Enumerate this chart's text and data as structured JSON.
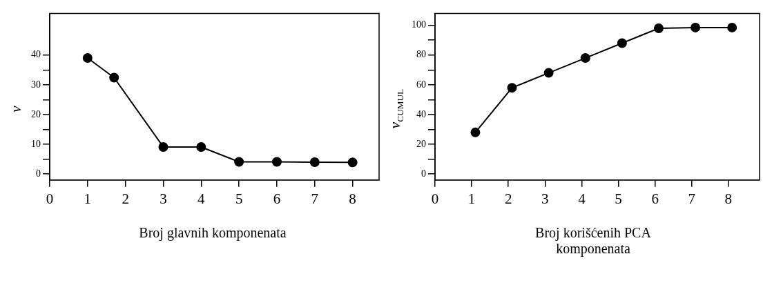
{
  "chart_data": [
    {
      "type": "line",
      "xlabel": "Broj glavnih komponenata",
      "ylabel": "v",
      "x": [
        1,
        1.7,
        3,
        4,
        5,
        6,
        7,
        8
      ],
      "series": [
        {
          "color": "#000000",
          "values": [
            39,
            32.4,
            9.1,
            9.1,
            4.1,
            4.1,
            4,
            3.9
          ]
        }
      ],
      "xlim": [
        0,
        8.7
      ],
      "xticks": [
        0,
        1,
        2,
        3,
        4,
        5,
        6,
        7,
        8
      ],
      "ylim": [
        -2,
        54
      ],
      "yticks": [
        0,
        {
          "value": 5,
          "label": null
        },
        10,
        {
          "value": 15,
          "label": null
        },
        20,
        {
          "value": 25,
          "label": null
        },
        30,
        {
          "value": 35,
          "label": null
        },
        40
      ],
      "marker": "circle",
      "grid": false
    },
    {
      "type": "line",
      "xlabel": "Broj korišćenih PCA komponenata",
      "ylabel": "v$_{CUMUL}$",
      "x": [
        1.1,
        2.1,
        3.1,
        4.1,
        5.1,
        6.1,
        7.1,
        8.1
      ],
      "series": [
        {
          "color": "#000000",
          "values": [
            28,
            58,
            68,
            78,
            88,
            98,
            98.5,
            98.5
          ]
        }
      ],
      "xlim": [
        0,
        8.85
      ],
      "xticks": [
        0,
        1,
        2,
        3,
        4,
        5,
        6,
        7,
        8
      ],
      "ylim": [
        -4,
        108
      ],
      "yticks": [
        0,
        {
          "value": 10,
          "label": null
        },
        20,
        {
          "value": 30,
          "label": null
        },
        40,
        {
          "value": 50,
          "label": null
        },
        60,
        {
          "value": 70,
          "label": null
        },
        80,
        {
          "value": 90,
          "label": null
        },
        100
      ],
      "marker": "circle",
      "grid": false
    }
  ]
}
